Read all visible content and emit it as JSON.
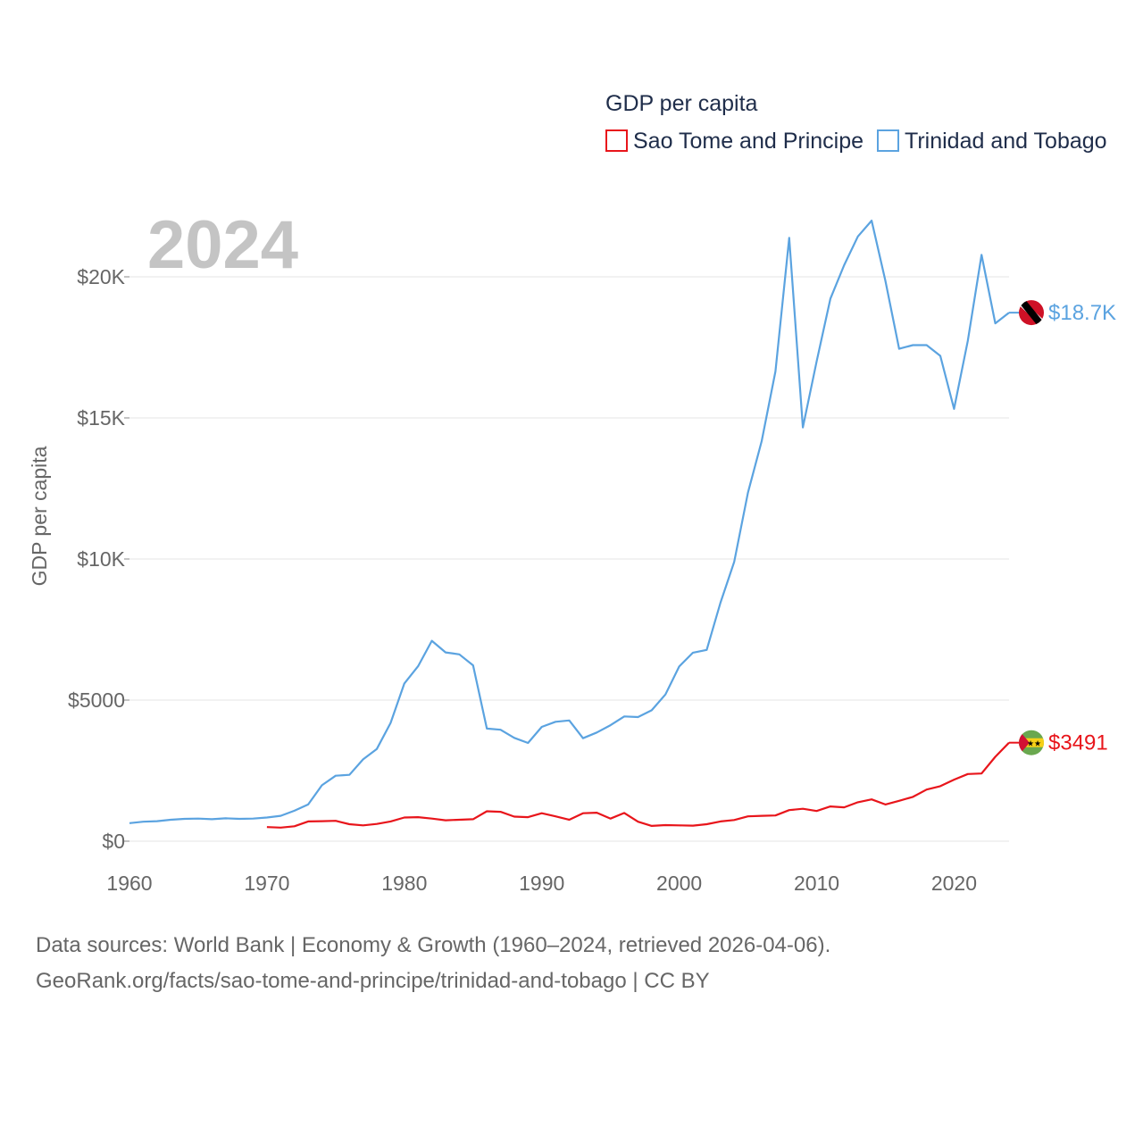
{
  "chart_data": {
    "type": "line",
    "title": "GDP per capita",
    "year_label": "2024",
    "ylabel": "GDP per capita",
    "xlabel": "",
    "xlim": [
      1960,
      2024
    ],
    "ylim": [
      0,
      22000
    ],
    "x_ticks": [
      1960,
      1970,
      1980,
      1990,
      2000,
      2010,
      2020
    ],
    "x_tick_labels": [
      "1960",
      "1970",
      "1980",
      "1990",
      "2000",
      "2010",
      "2020"
    ],
    "y_ticks": [
      0,
      5000,
      10000,
      15000,
      20000
    ],
    "y_tick_labels": [
      "$0",
      "$5000",
      "$10K",
      "$15K",
      "$20K"
    ],
    "grid": true,
    "legend_position": "top-right",
    "series": [
      {
        "name": "Sao Tome and Principe",
        "color": "#e8151b",
        "end_label": "$3491",
        "flag": "sao-tome-and-principe-flag",
        "x": [
          1970,
          1971,
          1972,
          1973,
          1974,
          1975,
          1976,
          1977,
          1978,
          1979,
          1980,
          1981,
          1982,
          1983,
          1984,
          1985,
          1986,
          1987,
          1988,
          1989,
          1990,
          1991,
          1992,
          1993,
          1994,
          1995,
          1996,
          1997,
          1998,
          1999,
          2000,
          2001,
          2002,
          2003,
          2004,
          2005,
          2006,
          2007,
          2008,
          2009,
          2010,
          2011,
          2012,
          2013,
          2014,
          2015,
          2016,
          2017,
          2018,
          2019,
          2020,
          2021,
          2022,
          2023,
          2024
        ],
        "values": [
          500,
          480,
          530,
          700,
          710,
          720,
          600,
          560,
          610,
          700,
          840,
          850,
          800,
          740,
          760,
          780,
          1060,
          1040,
          870,
          850,
          990,
          880,
          760,
          990,
          1010,
          800,
          1000,
          690,
          540,
          570,
          560,
          550,
          600,
          700,
          750,
          880,
          900,
          910,
          1100,
          1150,
          1070,
          1230,
          1200,
          1380,
          1480,
          1300,
          1430,
          1570,
          1830,
          1950,
          2180,
          2380,
          2400,
          2990,
          3491
        ]
      },
      {
        "name": "Trinidad and Tobago",
        "color": "#5ba3e0",
        "end_label": "$18.7K",
        "flag": "trinidad-and-tobago-flag",
        "x": [
          1960,
          1961,
          1962,
          1963,
          1964,
          1965,
          1966,
          1967,
          1968,
          1969,
          1970,
          1971,
          1972,
          1973,
          1974,
          1975,
          1976,
          1977,
          1978,
          1979,
          1980,
          1981,
          1982,
          1983,
          1984,
          1985,
          1986,
          1987,
          1988,
          1989,
          1990,
          1991,
          1992,
          1993,
          1994,
          1995,
          1996,
          1997,
          1998,
          1999,
          2000,
          2001,
          2002,
          2003,
          2004,
          2005,
          2006,
          2007,
          2008,
          2009,
          2010,
          2011,
          2012,
          2013,
          2014,
          2015,
          2016,
          2017,
          2018,
          2019,
          2020,
          2021,
          2022,
          2023,
          2024
        ],
        "values": [
          640,
          690,
          710,
          760,
          790,
          800,
          780,
          810,
          790,
          800,
          840,
          900,
          1080,
          1300,
          1980,
          2320,
          2350,
          2900,
          3270,
          4190,
          5590,
          6200,
          7100,
          6690,
          6620,
          6230,
          3990,
          3950,
          3660,
          3480,
          4050,
          4230,
          4280,
          3650,
          3850,
          4110,
          4420,
          4400,
          4640,
          5200,
          6190,
          6680,
          6780,
          8450,
          9900,
          12350,
          14180,
          16650,
          21380,
          14660,
          17000,
          19220,
          20410,
          21430,
          21990,
          19860,
          17450,
          17580,
          17580,
          17200,
          15320,
          17730,
          20780,
          18350,
          18730
        ]
      }
    ]
  },
  "footer": {
    "line1": "Data sources: World Bank | Economy & Growth (1960–2024, retrieved 2026-04-06).",
    "line2": "GeoRank.org/facts/sao-tome-and-principe/trinidad-and-tobago | CC BY"
  }
}
